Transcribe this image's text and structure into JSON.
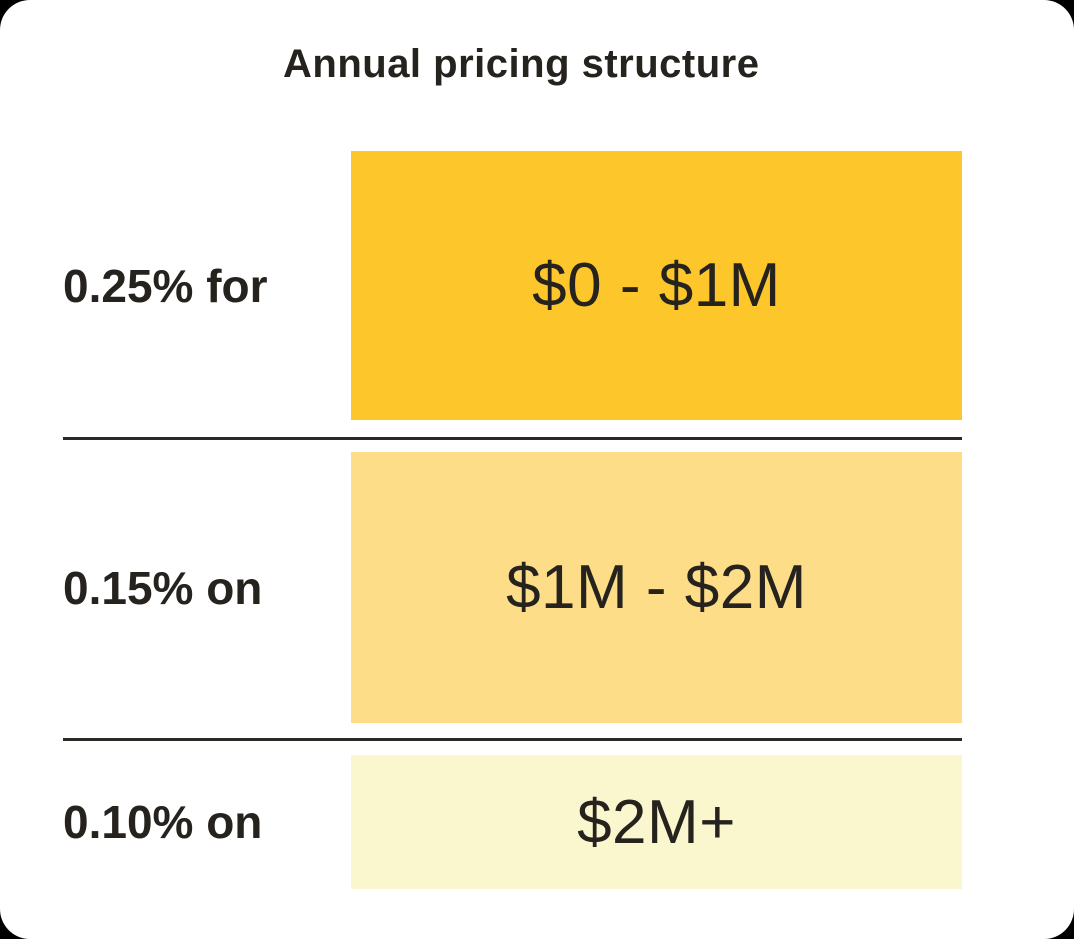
{
  "title": "Annual pricing structure",
  "colors": {
    "card_background": "#FFFFFF",
    "text": "#26231E",
    "divider": "#2B2A27",
    "tier1_fill": "#FDC62B",
    "tier2_fill": "#FDDD88",
    "tier3_fill": "#FAF7CE"
  },
  "chart_data": {
    "type": "table",
    "title": "Annual pricing structure",
    "legend_position": "none",
    "grid": false,
    "rows": [
      {
        "rate_label": "0.25% for",
        "bracket": "$0 - $1M",
        "rate_percent": 0.25,
        "bracket_low_usd": 0,
        "bracket_high_usd": 1000000,
        "color": "#FDC62B"
      },
      {
        "rate_label": "0.15% on",
        "bracket": "$1M - $2M",
        "rate_percent": 0.15,
        "bracket_low_usd": 1000000,
        "bracket_high_usd": 2000000,
        "color": "#FDDD88"
      },
      {
        "rate_label": "0.10% on",
        "bracket": "$2M+",
        "rate_percent": 0.1,
        "bracket_low_usd": 2000000,
        "bracket_high_usd": null,
        "color": "#FAF7CE"
      }
    ]
  }
}
